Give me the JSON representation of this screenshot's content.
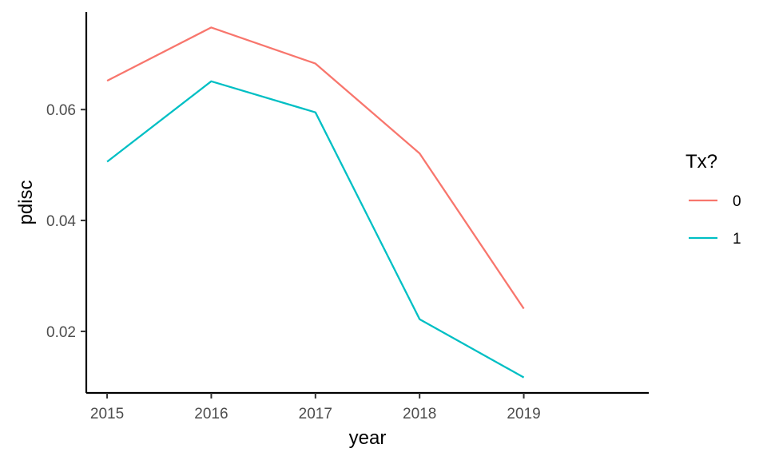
{
  "chart_data": {
    "type": "line",
    "xlabel": "year",
    "ylabel": "pdisc",
    "x": [
      2015,
      2016,
      2017,
      2018,
      2019
    ],
    "xticks": [
      "2015",
      "2016",
      "2017",
      "2018",
      "2019"
    ],
    "yticks": [
      0.02,
      0.04,
      0.06
    ],
    "ytick_labels": [
      "0.02",
      "0.04",
      "0.06"
    ],
    "xlim": [
      2014.8,
      2020.2
    ],
    "ylim": [
      0.0089,
      0.0776
    ],
    "grid": false,
    "legend": {
      "title": "Tx?",
      "placement": "right"
    },
    "series": [
      {
        "name": "0",
        "color": "#F8766D",
        "values": [
          0.0652,
          0.0748,
          0.0683,
          0.0521,
          0.0241
        ]
      },
      {
        "name": "1",
        "color": "#00BFC4",
        "values": [
          0.0506,
          0.0651,
          0.0595,
          0.0222,
          0.0117
        ]
      }
    ]
  }
}
